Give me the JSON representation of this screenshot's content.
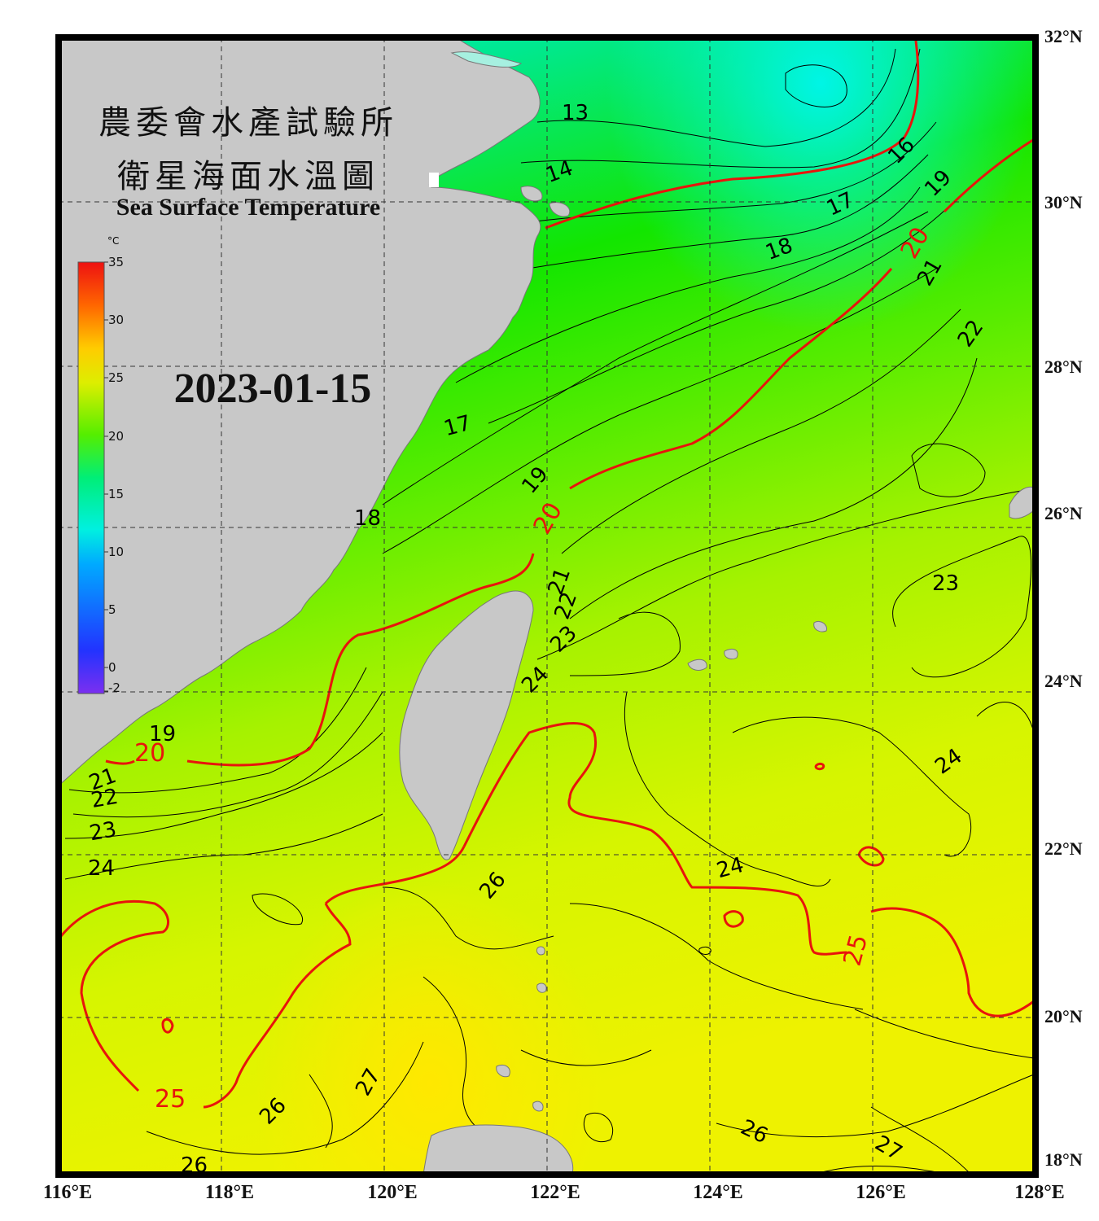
{
  "map": {
    "title_zh_line1": "農委會水產試驗所",
    "title_zh_line2": "衛星海面水溫圖",
    "title_en": "Sea Surface Temperature",
    "date": "2023-01-15",
    "latitude_labels": [
      "32°N",
      "30°N",
      "28°N",
      "26°N",
      "24°N",
      "22°N",
      "20°N",
      "18°N"
    ],
    "longitude_labels": [
      "116°E",
      "118°E",
      "120°E",
      "122°E",
      "124°E",
      "126°E",
      "128°E"
    ],
    "colorbar": {
      "unit": "°C",
      "ticks": [
        "35",
        "30",
        "25",
        "20",
        "15",
        "10",
        "5",
        "0",
        "-2"
      ],
      "colors": [
        "#7b2ff0",
        "#2233ff",
        "#00aaff",
        "#00f0e0",
        "#00ee77",
        "#55ee00",
        "#ddee00",
        "#ffcc00",
        "#ff6600",
        "#ee1111"
      ]
    },
    "contour_labels": [
      {
        "text": "13",
        "color": "#000000"
      },
      {
        "text": "14",
        "color": "#000000"
      },
      {
        "text": "16",
        "color": "#000000"
      },
      {
        "text": "17",
        "color": "#000000"
      },
      {
        "text": "17",
        "color": "#000000"
      },
      {
        "text": "18",
        "color": "#000000"
      },
      {
        "text": "18",
        "color": "#000000"
      },
      {
        "text": "19",
        "color": "#000000"
      },
      {
        "text": "19",
        "color": "#000000"
      },
      {
        "text": "19",
        "color": "#000000"
      },
      {
        "text": "20",
        "color": "#ee1111"
      },
      {
        "text": "20",
        "color": "#ee1111"
      },
      {
        "text": "20",
        "color": "#ee1111"
      },
      {
        "text": "21",
        "color": "#000000"
      },
      {
        "text": "21",
        "color": "#000000"
      },
      {
        "text": "21",
        "color": "#000000"
      },
      {
        "text": "22",
        "color": "#000000"
      },
      {
        "text": "22",
        "color": "#000000"
      },
      {
        "text": "22",
        "color": "#000000"
      },
      {
        "text": "23",
        "color": "#000000"
      },
      {
        "text": "23",
        "color": "#000000"
      },
      {
        "text": "23",
        "color": "#000000"
      },
      {
        "text": "24",
        "color": "#000000"
      },
      {
        "text": "24",
        "color": "#000000"
      },
      {
        "text": "24",
        "color": "#000000"
      },
      {
        "text": "24",
        "color": "#000000"
      },
      {
        "text": "25",
        "color": "#ee1111"
      },
      {
        "text": "25",
        "color": "#ee1111"
      },
      {
        "text": "26",
        "color": "#000000"
      },
      {
        "text": "26",
        "color": "#000000"
      },
      {
        "text": "26",
        "color": "#000000"
      },
      {
        "text": "26",
        "color": "#000000"
      },
      {
        "text": "27",
        "color": "#000000"
      },
      {
        "text": "27",
        "color": "#000000"
      }
    ]
  }
}
